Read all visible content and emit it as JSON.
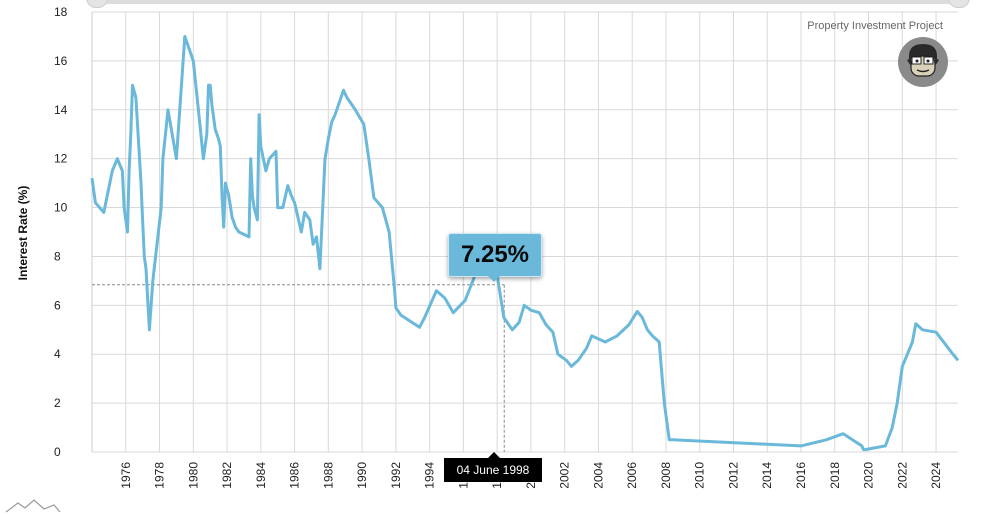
{
  "chart_data": {
    "type": "line",
    "title": "",
    "ylabel": "Interest Rate (%)",
    "xlabel": "",
    "ylim": [
      0,
      18
    ],
    "xlim": [
      1974.0,
      2025.3
    ],
    "y_ticks": [
      0,
      2,
      4,
      6,
      8,
      10,
      12,
      14,
      16,
      18
    ],
    "x_ticks": [
      1976,
      1978,
      1980,
      1982,
      1984,
      1986,
      1988,
      1990,
      1992,
      1994,
      1996,
      1998,
      2000,
      2002,
      2004,
      2006,
      2008,
      2010,
      2012,
      2014,
      2016,
      2018,
      2020,
      2022,
      2024
    ],
    "grid": true,
    "line_color": "#6ab8da",
    "series": [
      {
        "x": [
          1974.0,
          1974.2,
          1974.7,
          1975.2,
          1975.5,
          1975.8,
          1975.9,
          1976.1,
          1976.2,
          1976.3,
          1976.4,
          1976.6,
          1976.9,
          1977.0,
          1977.1,
          1977.2,
          1977.4,
          1977.6,
          1978.1,
          1978.2,
          1978.5,
          1979.0,
          1979.5,
          1980.0,
          1980.3,
          1980.6,
          1980.7,
          1980.8,
          1980.9,
          1981.0,
          1981.1,
          1981.3,
          1981.5,
          1981.6,
          1981.7,
          1981.8,
          1981.9,
          1982.1,
          1982.3,
          1982.5,
          1982.7,
          1983.3,
          1983.4,
          1983.5,
          1983.6,
          1983.8,
          1983.9,
          1984.0,
          1984.3,
          1984.5,
          1984.9,
          1985.0,
          1985.3,
          1985.6,
          1985.8,
          1986.0,
          1986.4,
          1986.6,
          1986.9,
          1987.1,
          1987.3,
          1987.5,
          1987.8,
          1988.0,
          1988.2,
          1988.4,
          1988.9,
          1989.1,
          1989.3,
          1989.6,
          1990.1,
          1990.4,
          1990.7,
          1991.2,
          1991.6,
          1991.9,
          1992.0,
          1992.3,
          1993.4,
          1993.7,
          1994.4,
          1994.9,
          1995.4,
          1996.1,
          1996.7,
          1997.4,
          1998.0,
          1998.4,
          1998.9,
          1999.3,
          1999.6,
          2000.0,
          2000.5,
          2000.9,
          2001.3,
          2001.6,
          2001.8,
          2002.1,
          2002.4,
          2002.8,
          2003.3,
          2003.6,
          2004.1,
          2004.4,
          2005.1,
          2005.8,
          2006.3,
          2006.6,
          2006.9,
          2007.2,
          2007.6,
          2007.9,
          2008.2,
          2008.4,
          2016.0,
          2017.5,
          2018.5,
          2019.6,
          2019.7,
          2019.8,
          2021.0,
          2021.4,
          2021.7,
          2022.0,
          2022.3,
          2022.6,
          2022.8,
          2023.2,
          2024.0,
          2025.0,
          2025.3
        ],
        "values": [
          11.2,
          10.2,
          9.8,
          11.5,
          12.0,
          11.5,
          10.0,
          9.0,
          11.5,
          13.0,
          15.0,
          14.5,
          11.0,
          9.5,
          8.0,
          7.5,
          5.0,
          7.0,
          10.0,
          12.0,
          14.0,
          12.0,
          17.0,
          16.0,
          14.0,
          12.0,
          12.5,
          13.0,
          15.0,
          15.0,
          14.2,
          13.2,
          12.8,
          12.5,
          10.5,
          9.2,
          11.0,
          10.5,
          9.6,
          9.2,
          9.0,
          8.8,
          12.0,
          10.5,
          10.0,
          9.5,
          13.8,
          12.5,
          11.5,
          12.0,
          12.3,
          10.0,
          10.0,
          10.9,
          10.5,
          10.2,
          9.0,
          9.8,
          9.5,
          8.5,
          8.8,
          7.5,
          12.0,
          12.8,
          13.5,
          13.8,
          14.8,
          14.5,
          14.3,
          14.0,
          13.4,
          12.0,
          10.4,
          10.0,
          9.0,
          6.8,
          5.9,
          5.6,
          5.1,
          5.5,
          6.6,
          6.3,
          5.7,
          6.2,
          7.25,
          7.25,
          7.25,
          5.5,
          5.0,
          5.3,
          6.0,
          5.8,
          5.7,
          5.2,
          4.9,
          4.0,
          3.9,
          3.75,
          3.5,
          3.75,
          4.25,
          4.75,
          4.6,
          4.5,
          4.75,
          5.2,
          5.75,
          5.5,
          5.0,
          4.75,
          4.5,
          2.0,
          0.5,
          0.5,
          0.25,
          0.5,
          0.75,
          0.25,
          0.1,
          0.1,
          0.25,
          1.0,
          2.0,
          3.5,
          4.0,
          4.5,
          5.25,
          5.0,
          4.9,
          4.0,
          3.75
        ]
      }
    ],
    "tooltip": {
      "value": "7.25%",
      "date": "04 June 1998",
      "x": 1998.42,
      "y": 7.25
    }
  },
  "watermark": "Property Investment Project",
  "avatar_icon": "cartoon-face-icon"
}
